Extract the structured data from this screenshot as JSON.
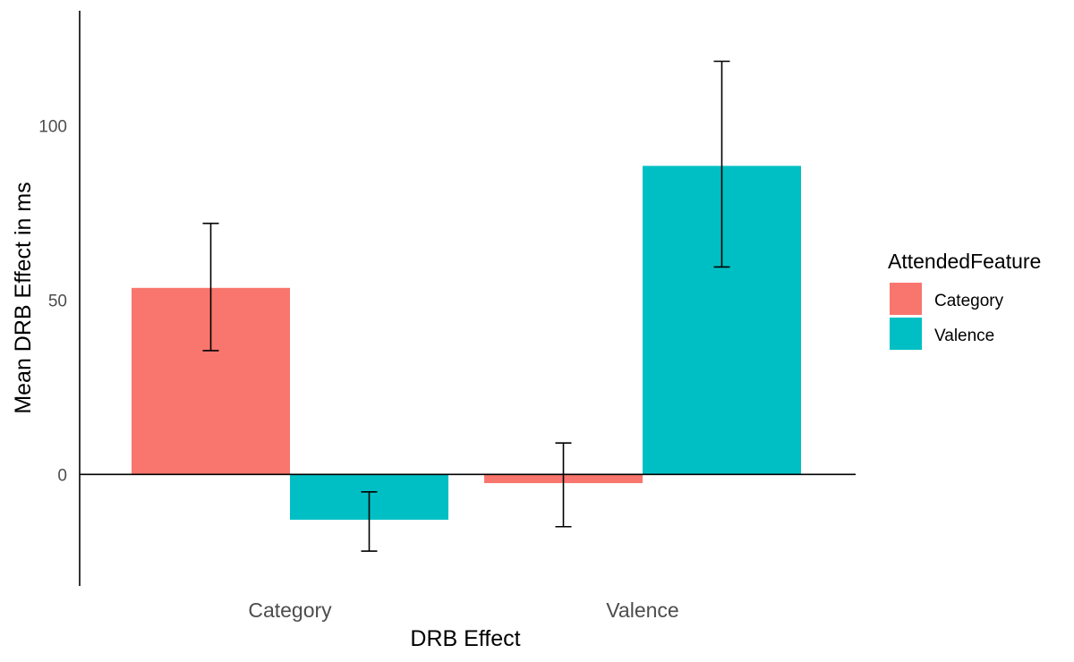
{
  "chart_data": {
    "type": "bar",
    "title": "",
    "xlabel": "DRB Effect",
    "ylabel": "Mean DRB Effect in ms",
    "categories": [
      "Category",
      "Valence"
    ],
    "series": [
      {
        "name": "Category",
        "color": "#F8766D",
        "values": [
          53.5,
          -2.5
        ],
        "error_low": [
          35.5,
          -15
        ],
        "error_high": [
          72,
          9
        ]
      },
      {
        "name": "Valence",
        "color": "#00BFC4",
        "values": [
          -13,
          88.5
        ],
        "error_low": [
          -22,
          59.5
        ],
        "error_high": [
          -5,
          118.5
        ]
      }
    ],
    "ylim": [
      -32,
      133
    ],
    "yticks": [
      0,
      50,
      100
    ],
    "legend": {
      "title": "AttendedFeature",
      "position": "right"
    },
    "grid": false
  }
}
